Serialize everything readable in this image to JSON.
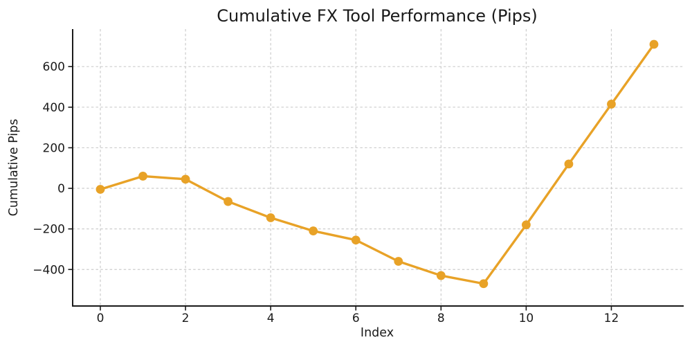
{
  "chart_data": {
    "type": "line",
    "title": "Cumulative FX Tool Performance (Pips)",
    "xlabel": "Index",
    "ylabel": "Cumulative Pips",
    "x": [
      0,
      1,
      2,
      3,
      4,
      5,
      6,
      7,
      8,
      9,
      10,
      11,
      12,
      13
    ],
    "values": [
      -5,
      60,
      45,
      -65,
      -145,
      -210,
      -255,
      -360,
      -430,
      -470,
      -180,
      120,
      415,
      710
    ],
    "xticks": [
      0,
      2,
      4,
      6,
      8,
      10,
      12
    ],
    "yticks": [
      -400,
      -200,
      0,
      200,
      400,
      600
    ],
    "xlim": [
      -0.65,
      13.65
    ],
    "ylim": [
      -580,
      785
    ],
    "grid": true,
    "grid_style": "dashed",
    "legend": false,
    "line_color": "#E8A227",
    "marker_color": "#E8A227",
    "marker": "circle",
    "grid_color": "#cccccc",
    "axis_color": "#1a1a1a",
    "text_color": "#1a1a1a",
    "background": "#ffffff"
  }
}
